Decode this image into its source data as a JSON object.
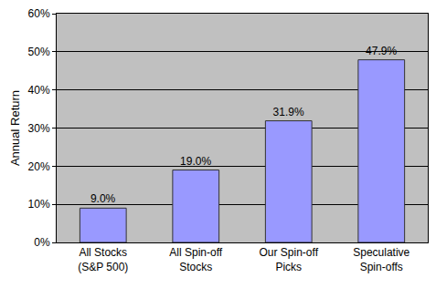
{
  "chart_data": {
    "type": "bar",
    "y_label": "Annual Return",
    "categories": [
      "All Stocks\n(S&P 500)",
      "All Spin-off\nStocks",
      "Our Spin-off\nPicks",
      "Speculative\nSpin-offs"
    ],
    "values": [
      9.0,
      19.0,
      31.9,
      47.9
    ],
    "value_labels": [
      "9.0%",
      "19.0%",
      "31.9%",
      "47.9%"
    ],
    "data_labels": true,
    "color": "#9999ff",
    "ylim": [
      0,
      60
    ],
    "yticks": [
      {
        "value": 0,
        "label": "0%"
      },
      {
        "value": 10,
        "label": "10%"
      },
      {
        "value": 20,
        "label": "20%"
      },
      {
        "value": 30,
        "label": "30%"
      },
      {
        "value": 40,
        "label": "40%"
      },
      {
        "value": 50,
        "label": "50%"
      },
      {
        "value": 60,
        "label": "60%"
      }
    ],
    "grid": true
  }
}
